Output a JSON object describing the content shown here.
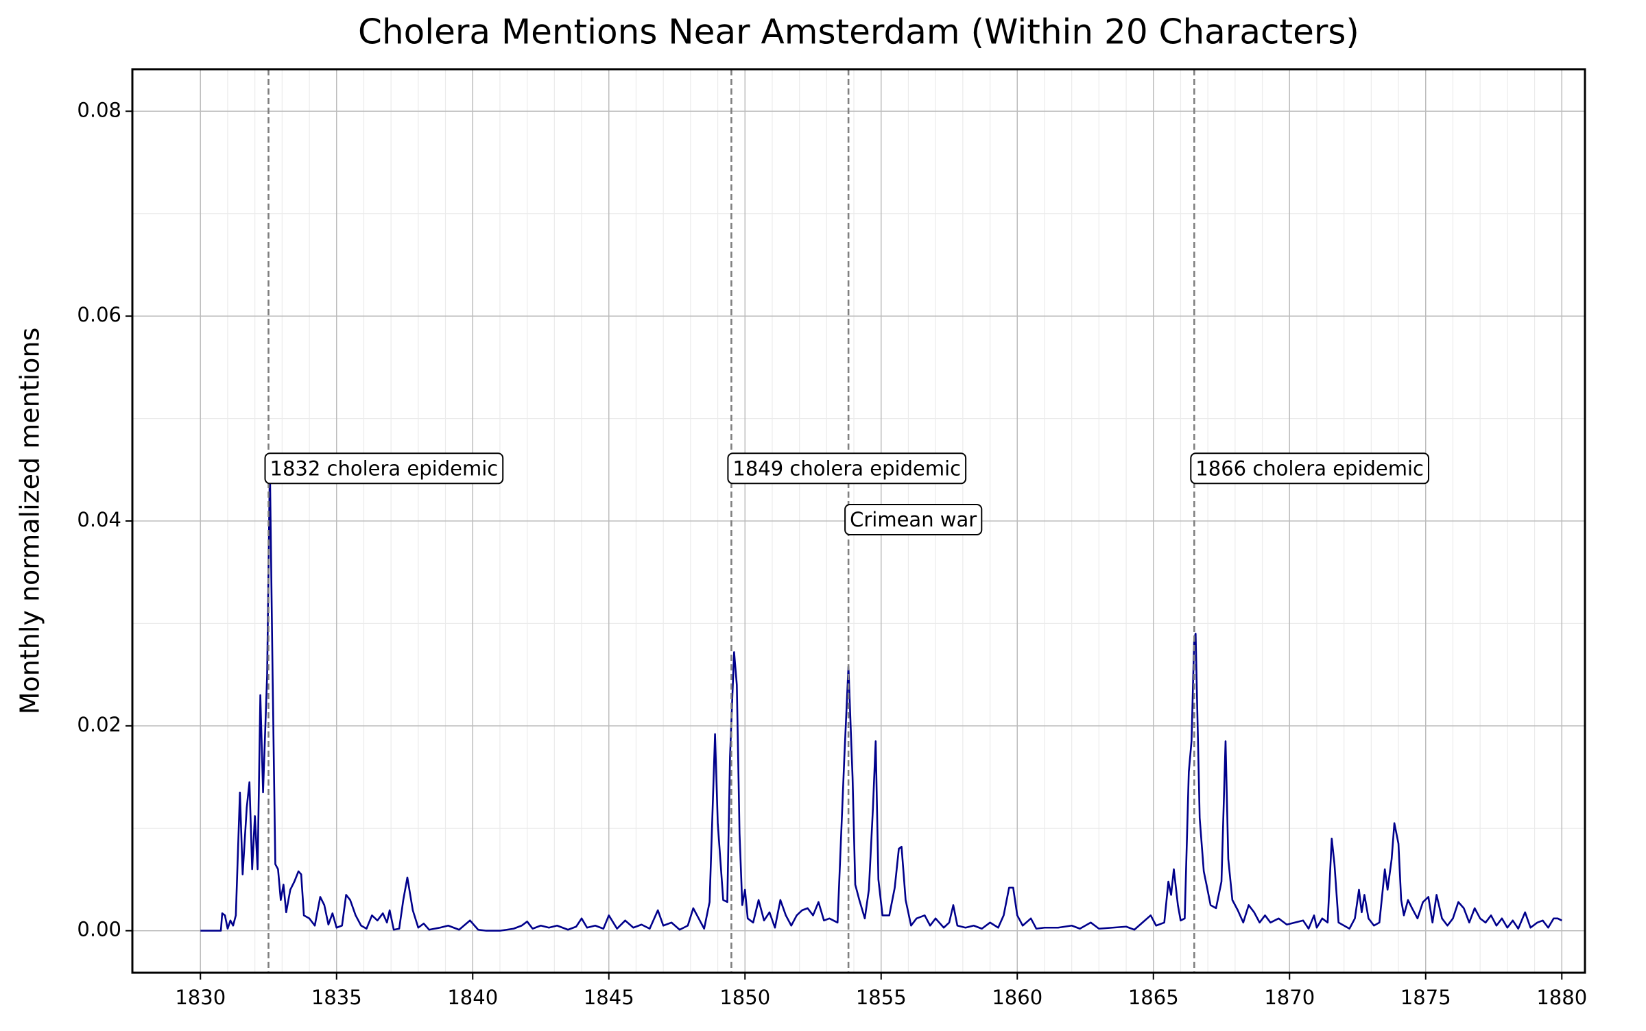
{
  "chart_data": {
    "type": "line",
    "title": "Cholera Mentions Near Amsterdam (Within 20 Characters)",
    "y_label": "Monthly normalized mentions",
    "xlim": [
      1827.5,
      1880.85
    ],
    "ylim": [
      -0.0041,
      0.0841
    ],
    "xticks": [
      1830,
      1835,
      1840,
      1845,
      1850,
      1855,
      1860,
      1865,
      1870,
      1875,
      1880
    ],
    "yticks": [
      {
        "value": 0,
        "label": "0.00"
      },
      {
        "value": 0.02,
        "label": "0.02"
      },
      {
        "value": 0.04,
        "label": "0.04"
      },
      {
        "value": 0.06,
        "label": "0.06"
      },
      {
        "value": 0.08,
        "label": "0.08"
      }
    ],
    "grid": true,
    "minor_grid": true,
    "x": [
      1830.0,
      1830.3,
      1830.6,
      1830.75,
      1830.8,
      1830.9,
      1831.0,
      1831.1,
      1831.2,
      1831.3,
      1831.45,
      1831.55,
      1831.7,
      1831.8,
      1831.9,
      1832.0,
      1832.1,
      1832.2,
      1832.3,
      1832.45,
      1832.55,
      1832.65,
      1832.75,
      1832.85,
      1832.95,
      1833.05,
      1833.15,
      1833.3,
      1833.45,
      1833.6,
      1833.7,
      1833.8,
      1834.0,
      1834.2,
      1834.4,
      1834.55,
      1834.7,
      1834.85,
      1835.0,
      1835.2,
      1835.35,
      1835.5,
      1835.7,
      1835.9,
      1836.1,
      1836.3,
      1836.5,
      1836.7,
      1836.85,
      1836.95,
      1837.1,
      1837.3,
      1837.45,
      1837.6,
      1837.8,
      1838.0,
      1838.2,
      1838.4,
      1838.8,
      1839.1,
      1839.5,
      1839.9,
      1840.2,
      1840.5,
      1841.0,
      1841.5,
      1841.8,
      1842.0,
      1842.2,
      1842.5,
      1842.8,
      1843.1,
      1843.5,
      1843.8,
      1844.0,
      1844.2,
      1844.5,
      1844.8,
      1845.0,
      1845.3,
      1845.6,
      1845.9,
      1846.2,
      1846.5,
      1846.8,
      1847.0,
      1847.3,
      1847.6,
      1847.9,
      1848.1,
      1848.3,
      1848.5,
      1848.7,
      1848.9,
      1849.0,
      1849.2,
      1849.35,
      1849.45,
      1849.6,
      1849.7,
      1849.8,
      1849.9,
      1850.0,
      1850.1,
      1850.3,
      1850.5,
      1850.7,
      1850.9,
      1851.1,
      1851.3,
      1851.5,
      1851.7,
      1851.9,
      1852.1,
      1852.3,
      1852.5,
      1852.7,
      1852.9,
      1853.1,
      1853.4,
      1853.65,
      1853.8,
      1853.95,
      1854.05,
      1854.2,
      1854.4,
      1854.55,
      1854.7,
      1854.8,
      1854.9,
      1855.05,
      1855.3,
      1855.5,
      1855.65,
      1855.75,
      1855.9,
      1856.1,
      1856.3,
      1856.6,
      1856.8,
      1857.0,
      1857.3,
      1857.5,
      1857.65,
      1857.8,
      1858.1,
      1858.4,
      1858.7,
      1859.0,
      1859.3,
      1859.5,
      1859.7,
      1859.85,
      1860.0,
      1860.2,
      1860.5,
      1860.7,
      1861.0,
      1861.5,
      1862.0,
      1862.3,
      1862.7,
      1863.0,
      1863.5,
      1864.0,
      1864.3,
      1864.6,
      1864.9,
      1865.1,
      1865.4,
      1865.55,
      1865.65,
      1865.75,
      1865.9,
      1866.0,
      1866.15,
      1866.3,
      1866.4,
      1866.5,
      1866.55,
      1866.7,
      1866.85,
      1866.95,
      1867.1,
      1867.3,
      1867.5,
      1867.65,
      1867.75,
      1867.9,
      1868.1,
      1868.3,
      1868.5,
      1868.7,
      1868.9,
      1869.1,
      1869.3,
      1869.6,
      1869.9,
      1870.2,
      1870.5,
      1870.7,
      1870.9,
      1871.0,
      1871.2,
      1871.4,
      1871.55,
      1871.65,
      1871.8,
      1872.0,
      1872.2,
      1872.4,
      1872.55,
      1872.65,
      1872.75,
      1872.9,
      1873.1,
      1873.3,
      1873.5,
      1873.6,
      1873.75,
      1873.85,
      1874.0,
      1874.1,
      1874.2,
      1874.35,
      1874.5,
      1874.7,
      1874.9,
      1875.1,
      1875.25,
      1875.4,
      1875.6,
      1875.8,
      1876.0,
      1876.2,
      1876.4,
      1876.6,
      1876.8,
      1877.0,
      1877.2,
      1877.4,
      1877.6,
      1877.8,
      1878.0,
      1878.2,
      1878.4,
      1878.65,
      1878.85,
      1879.1,
      1879.3,
      1879.5,
      1879.7,
      1879.85,
      1880.0
    ],
    "series": [
      {
        "color": "#00008b",
        "values": [
          0,
          0,
          0,
          0,
          0.0017,
          0.0015,
          0.0002,
          0.001,
          0.0005,
          0.0015,
          0.0135,
          0.0055,
          0.012,
          0.0145,
          0.006,
          0.0112,
          0.006,
          0.023,
          0.0135,
          0.025,
          0.0455,
          0.025,
          0.0065,
          0.006,
          0.003,
          0.0045,
          0.0018,
          0.004,
          0.0048,
          0.0058,
          0.0055,
          0.0015,
          0.0012,
          0.0005,
          0.0033,
          0.0025,
          0.0006,
          0.0017,
          0.0003,
          0.0005,
          0.0035,
          0.003,
          0.0015,
          0.0005,
          0.0002,
          0.0015,
          0.001,
          0.0017,
          0.0008,
          0.002,
          0.0001,
          0.0002,
          0.003,
          0.0052,
          0.002,
          0.0003,
          0.0007,
          0.0001,
          0.0003,
          0.0005,
          0.0001,
          0.001,
          0.0001,
          0,
          0,
          0.0002,
          0.0005,
          0.0009,
          0.0002,
          0.0005,
          0.0003,
          0.0005,
          0.0001,
          0.0004,
          0.0012,
          0.0003,
          0.0005,
          0.0002,
          0.0015,
          0.0002,
          0.001,
          0.0003,
          0.0006,
          0.0002,
          0.002,
          0.0005,
          0.0008,
          0.0001,
          0.0005,
          0.0022,
          0.0012,
          0.0002,
          0.0028,
          0.0192,
          0.0105,
          0.003,
          0.0028,
          0.017,
          0.0272,
          0.024,
          0.0095,
          0.0025,
          0.004,
          0.0012,
          0.0008,
          0.003,
          0.001,
          0.0018,
          0.0003,
          0.003,
          0.0015,
          0.0005,
          0.0015,
          0.002,
          0.0022,
          0.0015,
          0.0028,
          0.001,
          0.0012,
          0.0008,
          0.017,
          0.0258,
          0.015,
          0.0045,
          0.003,
          0.0012,
          0.004,
          0.012,
          0.0185,
          0.005,
          0.0015,
          0.0015,
          0.0042,
          0.008,
          0.0082,
          0.003,
          0.0005,
          0.0012,
          0.0015,
          0.0005,
          0.0012,
          0.0003,
          0.0008,
          0.0025,
          0.0005,
          0.0003,
          0.0005,
          0.0002,
          0.0008,
          0.0003,
          0.0015,
          0.0042,
          0.0042,
          0.0015,
          0.0005,
          0.0012,
          0.0002,
          0.0003,
          0.0003,
          0.0005,
          0.0002,
          0.0008,
          0.0002,
          0.0003,
          0.0004,
          0.0001,
          0.0008,
          0.0015,
          0.0005,
          0.0008,
          0.0048,
          0.0035,
          0.006,
          0.0025,
          0.001,
          0.0012,
          0.0155,
          0.0185,
          0.0285,
          0.029,
          0.011,
          0.0058,
          0.0045,
          0.0025,
          0.0022,
          0.0048,
          0.0185,
          0.007,
          0.003,
          0.002,
          0.0008,
          0.0025,
          0.0018,
          0.0008,
          0.0015,
          0.0008,
          0.0012,
          0.0006,
          0.0008,
          0.001,
          0.0002,
          0.0015,
          0.0003,
          0.0012,
          0.0008,
          0.009,
          0.0065,
          0.0008,
          0.0005,
          0.0002,
          0.0012,
          0.004,
          0.0018,
          0.0035,
          0.0012,
          0.0005,
          0.0008,
          0.006,
          0.004,
          0.007,
          0.0105,
          0.0085,
          0.003,
          0.0015,
          0.003,
          0.0022,
          0.0012,
          0.0028,
          0.0033,
          0.0008,
          0.0035,
          0.0012,
          0.0005,
          0.0012,
          0.0028,
          0.0022,
          0.0008,
          0.0022,
          0.0012,
          0.0008,
          0.0015,
          0.0005,
          0.0012,
          0.0003,
          0.001,
          0.0002,
          0.0018,
          0.0003,
          0.0008,
          0.001,
          0.0003,
          0.0012,
          0.0012,
          0.001
        ]
      }
    ],
    "annotations": [
      {
        "x": 1832.5,
        "y": 0.045,
        "label": "1832 cholera epidemic"
      },
      {
        "x": 1849.5,
        "y": 0.045,
        "label": "1849 cholera epidemic"
      },
      {
        "x": 1853.8,
        "y": 0.04,
        "label": "Crimean war"
      },
      {
        "x": 1866.5,
        "y": 0.045,
        "label": "1866 cholera epidemic"
      }
    ]
  }
}
